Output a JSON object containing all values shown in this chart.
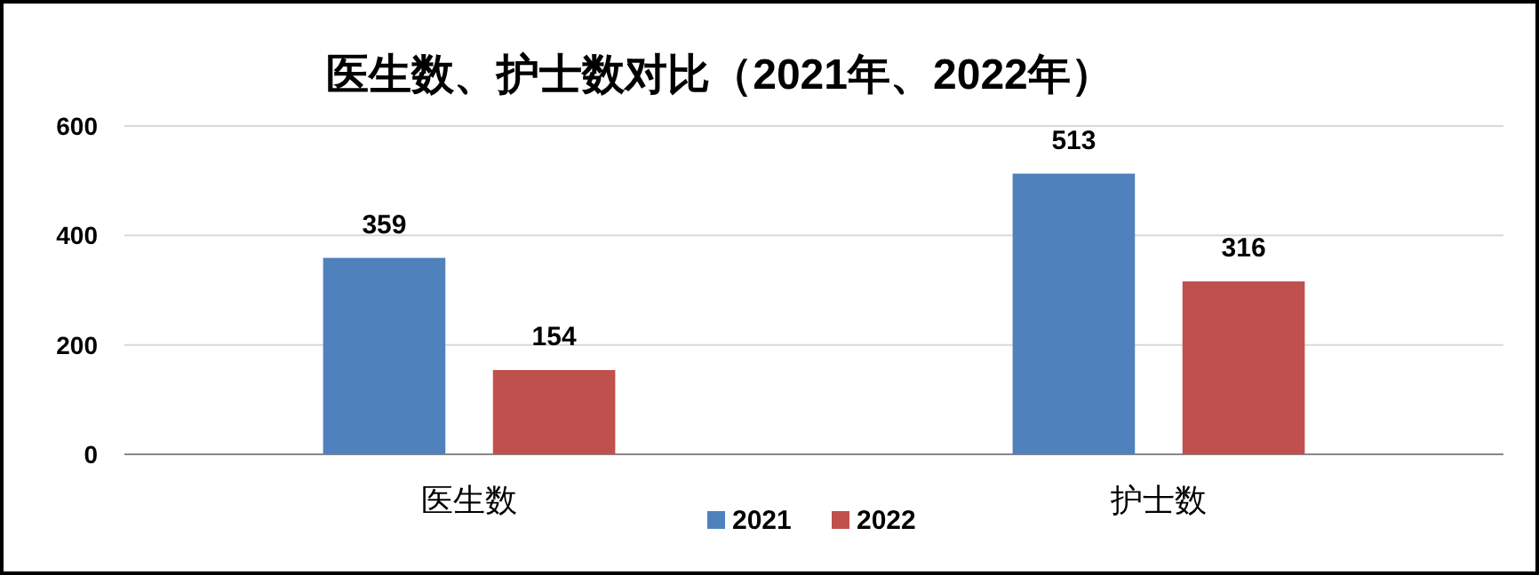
{
  "chart_data": {
    "type": "bar",
    "title": "医生数、护士数对比（2021年、2022年）",
    "categories": [
      "医生数",
      "护士数"
    ],
    "series": [
      {
        "name": "2021",
        "color": "#4f81bd",
        "values": [
          359,
          513
        ]
      },
      {
        "name": "2022",
        "color": "#c0504d",
        "values": [
          154,
          316
        ]
      }
    ],
    "ylim": [
      0,
      600
    ],
    "yticks": [
      0,
      200,
      400,
      600
    ],
    "grid": "y",
    "legend": "bottom",
    "data_labels": true
  }
}
